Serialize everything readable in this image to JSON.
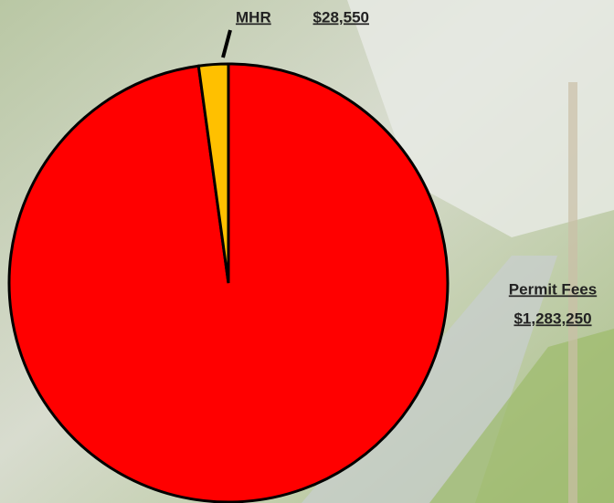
{
  "chart_data": {
    "type": "pie",
    "categories": [
      "Permit Fees",
      "MHR"
    ],
    "values": [
      1283250,
      28550
    ],
    "value_labels": [
      "$1,283,250",
      "$28,550"
    ],
    "colors": [
      "#ff0000",
      "#ffc000"
    ]
  }
}
